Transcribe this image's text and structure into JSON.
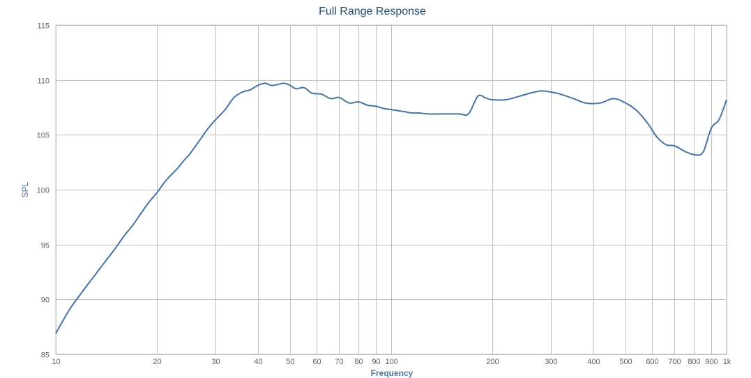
{
  "chart_data": {
    "type": "line",
    "title": "Full Range Response",
    "xlabel": "Frequency",
    "ylabel": "SPL",
    "x_scale": "log",
    "xlim": [
      10,
      1000
    ],
    "ylim": [
      85,
      115
    ],
    "grid": true,
    "x_ticks": [
      {
        "value": 10,
        "label": "10"
      },
      {
        "value": 20,
        "label": "20"
      },
      {
        "value": 30,
        "label": "30"
      },
      {
        "value": 40,
        "label": "40"
      },
      {
        "value": 50,
        "label": "50"
      },
      {
        "value": 60,
        "label": "60"
      },
      {
        "value": 70,
        "label": "70"
      },
      {
        "value": 80,
        "label": "80"
      },
      {
        "value": 90,
        "label": "90"
      },
      {
        "value": 100,
        "label": "100"
      },
      {
        "value": 200,
        "label": "200"
      },
      {
        "value": 300,
        "label": "300"
      },
      {
        "value": 400,
        "label": "400"
      },
      {
        "value": 500,
        "label": "500"
      },
      {
        "value": 600,
        "label": "600"
      },
      {
        "value": 700,
        "label": "700"
      },
      {
        "value": 800,
        "label": "800"
      },
      {
        "value": 900,
        "label": "900"
      },
      {
        "value": 1000,
        "label": "1k"
      }
    ],
    "y_ticks": [
      {
        "value": 85,
        "label": "85"
      },
      {
        "value": 90,
        "label": "90"
      },
      {
        "value": 95,
        "label": "95"
      },
      {
        "value": 100,
        "label": "100"
      },
      {
        "value": 105,
        "label": "105"
      },
      {
        "value": 110,
        "label": "110"
      },
      {
        "value": 115,
        "label": "115"
      }
    ],
    "series": [
      {
        "color": "#4572a7",
        "x": [
          10,
          11,
          12,
          13,
          14,
          15,
          16,
          17,
          18,
          19,
          20,
          21,
          22,
          23,
          24,
          25,
          26,
          27,
          28,
          29,
          30,
          32,
          34,
          36,
          38,
          40,
          42,
          44,
          46,
          48,
          50,
          52,
          55,
          58,
          62,
          66,
          70,
          75,
          80,
          85,
          90,
          95,
          100,
          105,
          110,
          115,
          120,
          130,
          140,
          150,
          160,
          170,
          180,
          185,
          190,
          200,
          220,
          240,
          260,
          280,
          300,
          320,
          350,
          380,
          420,
          460,
          500,
          540,
          580,
          620,
          660,
          700,
          750,
          800,
          850,
          900,
          950,
          1000
        ],
        "y": [
          86.9,
          89.1,
          90.7,
          92.1,
          93.4,
          94.6,
          95.8,
          96.8,
          97.9,
          98.9,
          99.7,
          100.6,
          101.3,
          101.9,
          102.6,
          103.2,
          103.9,
          104.6,
          105.3,
          105.9,
          106.4,
          107.3,
          108.4,
          108.9,
          109.1,
          109.5,
          109.7,
          109.5,
          109.6,
          109.7,
          109.5,
          109.2,
          109.3,
          108.8,
          108.7,
          108.3,
          108.4,
          107.9,
          108.0,
          107.7,
          107.6,
          107.4,
          107.3,
          107.2,
          107.1,
          107.0,
          107.0,
          106.9,
          106.9,
          106.9,
          106.9,
          106.9,
          108.4,
          108.6,
          108.4,
          108.2,
          108.2,
          108.5,
          108.8,
          109.0,
          108.9,
          108.7,
          108.3,
          107.9,
          107.9,
          108.3,
          107.9,
          107.2,
          106.1,
          104.8,
          104.1,
          104.0,
          103.5,
          103.2,
          103.4,
          105.6,
          106.4,
          108.2
        ]
      }
    ]
  }
}
